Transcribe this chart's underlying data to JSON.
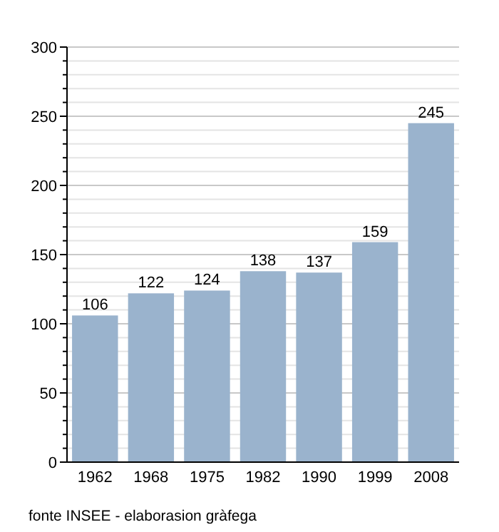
{
  "chart_data": {
    "type": "bar",
    "categories": [
      "1962",
      "1968",
      "1975",
      "1982",
      "1990",
      "1999",
      "2008"
    ],
    "values": [
      106,
      122,
      124,
      138,
      137,
      159,
      245
    ],
    "color": "#9ab3cd",
    "data_labels": true,
    "grid": "y",
    "ylim": [
      0,
      300
    ],
    "yticks": [
      0,
      {
        "value": 10,
        "label": null
      },
      {
        "value": 20,
        "label": null
      },
      {
        "value": 30,
        "label": null
      },
      {
        "value": 40,
        "label": null
      },
      50,
      {
        "value": 60,
        "label": null
      },
      {
        "value": 70,
        "label": null
      },
      {
        "value": 80,
        "label": null
      },
      {
        "value": 90,
        "label": null
      },
      100,
      {
        "value": 110,
        "label": null
      },
      {
        "value": 120,
        "label": null
      },
      {
        "value": 130,
        "label": null
      },
      {
        "value": 140,
        "label": null
      },
      150,
      {
        "value": 160,
        "label": null
      },
      {
        "value": 170,
        "label": null
      },
      {
        "value": 180,
        "label": null
      },
      {
        "value": 190,
        "label": null
      },
      200,
      {
        "value": 210,
        "label": null
      },
      {
        "value": 220,
        "label": null
      },
      {
        "value": 230,
        "label": null
      },
      {
        "value": 240,
        "label": null
      },
      250,
      {
        "value": 260,
        "label": null
      },
      {
        "value": 270,
        "label": null
      },
      {
        "value": 280,
        "label": null
      },
      {
        "value": 290,
        "label": null
      },
      300
    ],
    "annotations": [
      "fonte INSEE - elaborasion gràfega"
    ]
  }
}
